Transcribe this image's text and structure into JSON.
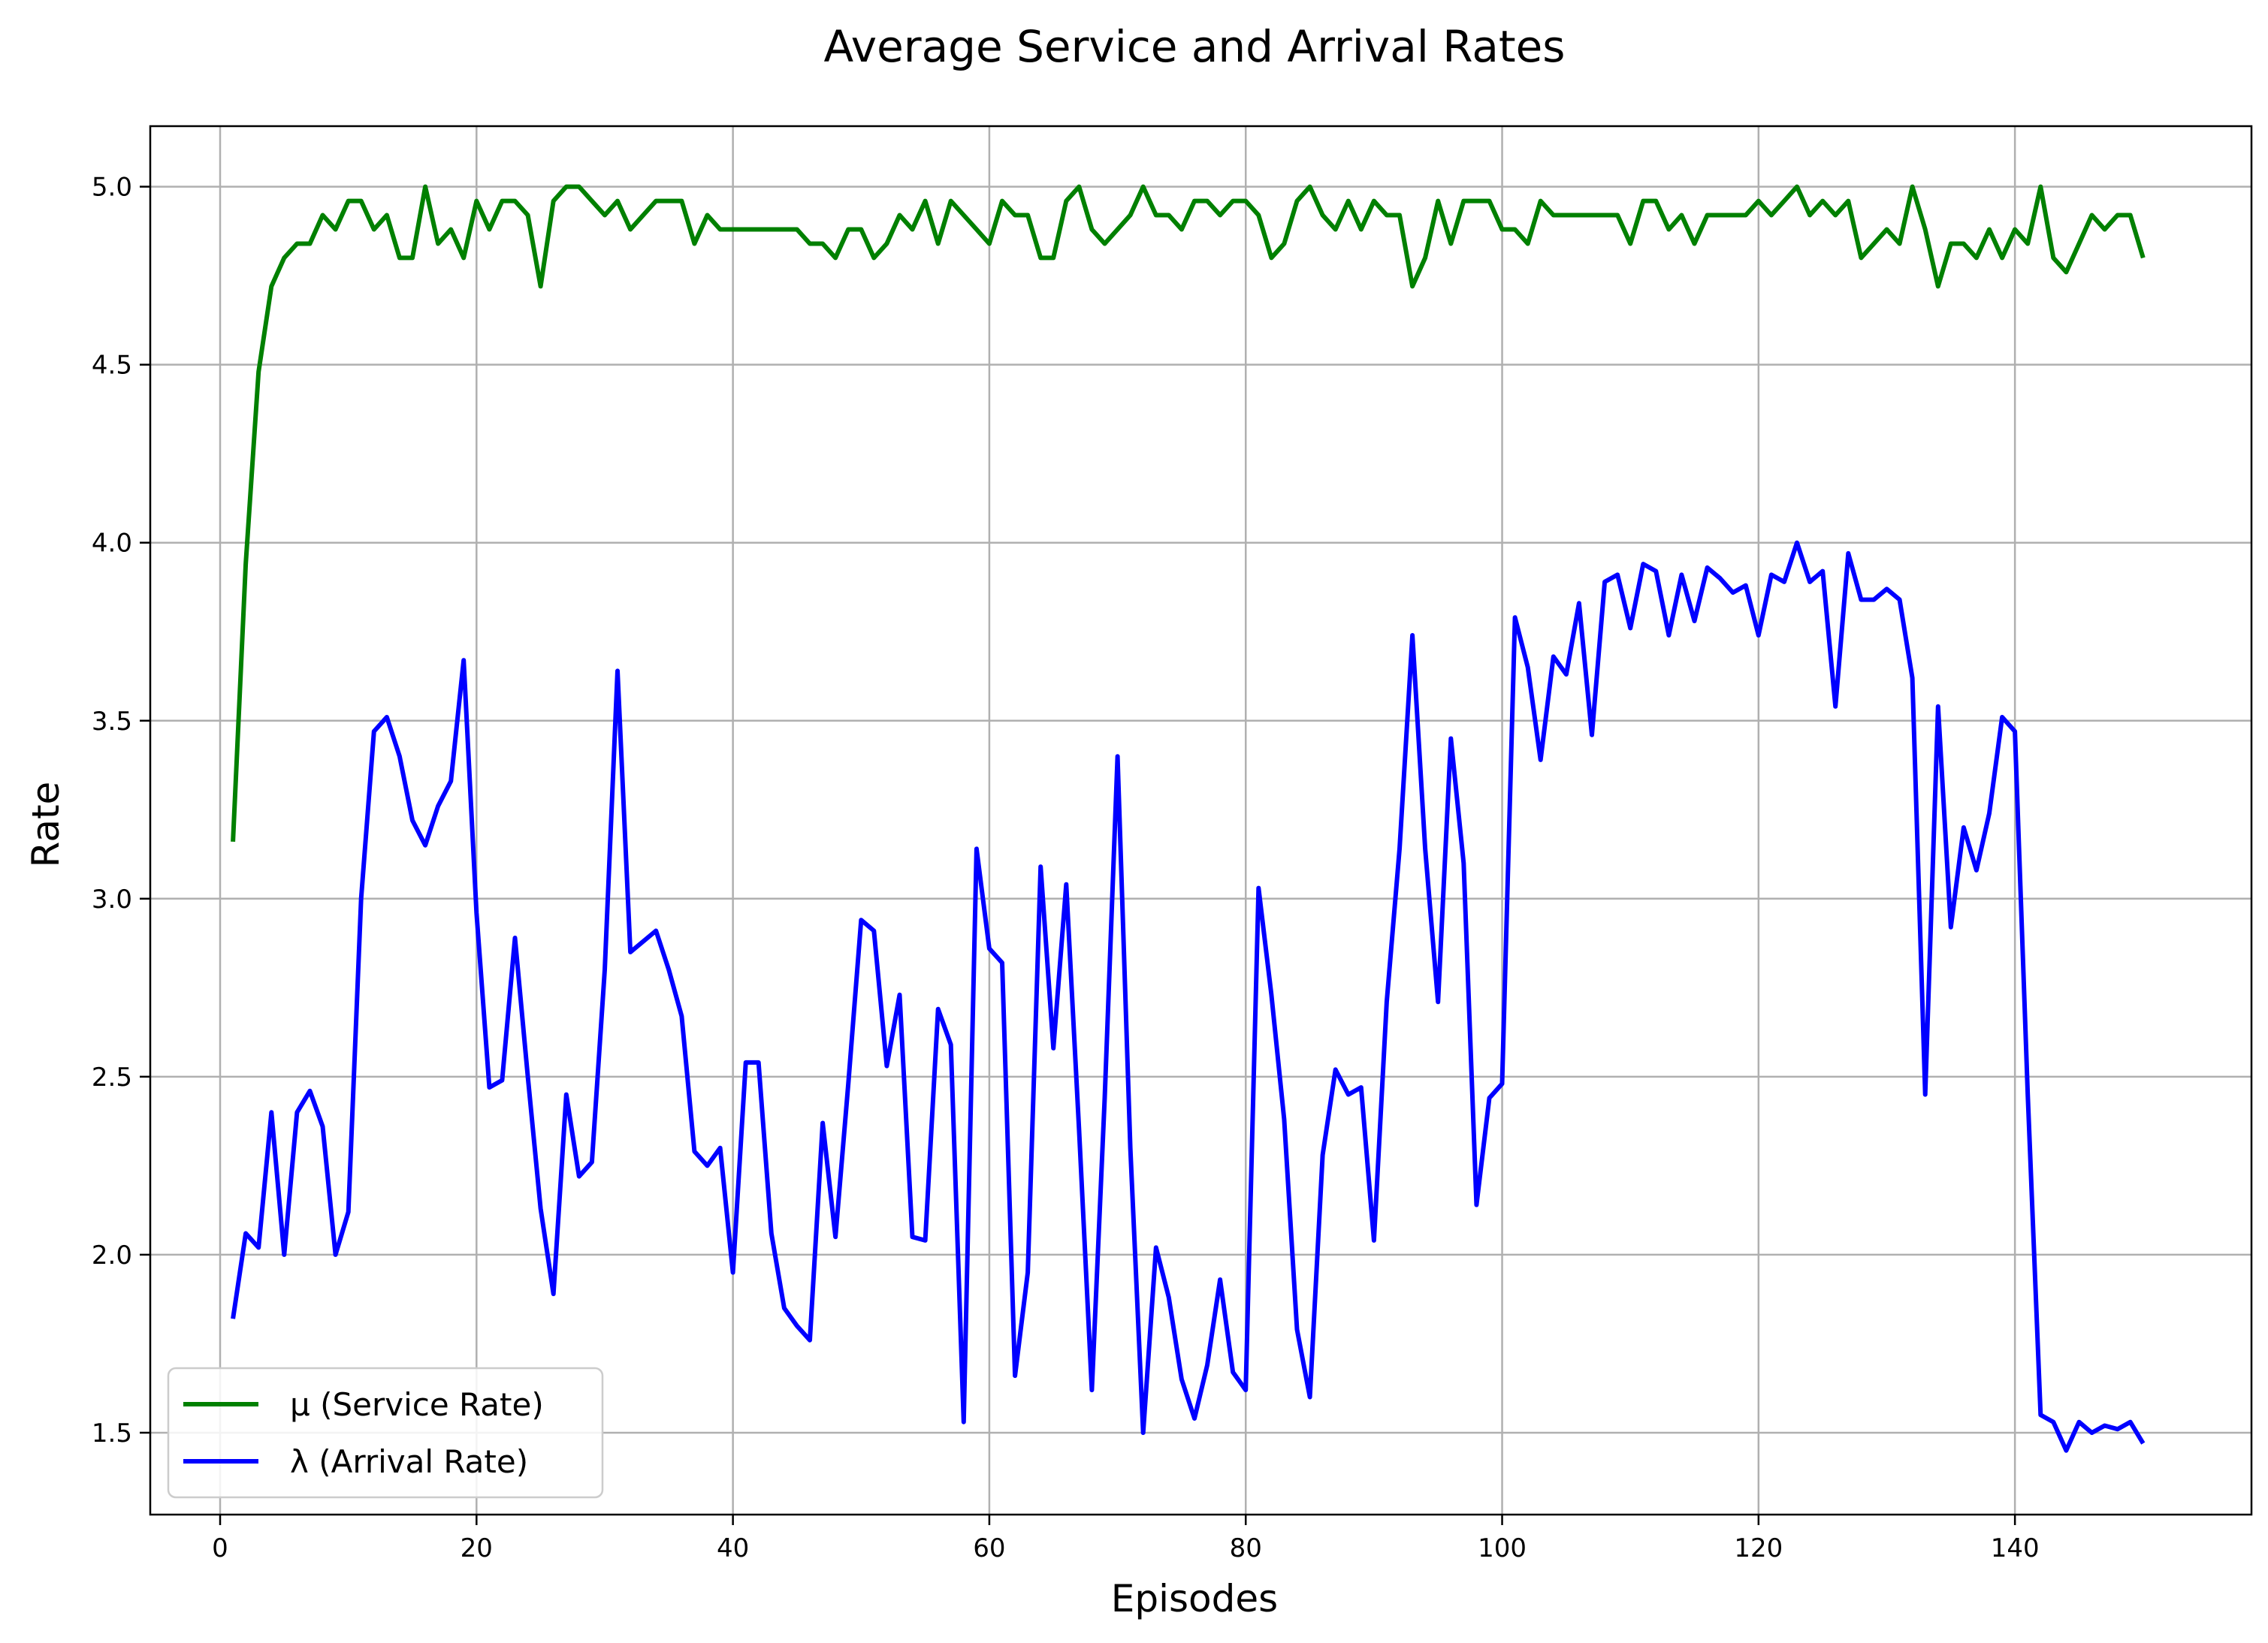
{
  "chart_data": {
    "type": "line",
    "title": "Average Service and Arrival Rates",
    "xlabel": "Episodes",
    "ylabel": "Rate",
    "xlim": [
      -5.45,
      158.45
    ],
    "ylim": [
      1.27,
      5.17
    ],
    "x_ticks": [
      0,
      20,
      40,
      60,
      80,
      100,
      120,
      140
    ],
    "y_ticks": [
      1.5,
      2.0,
      2.5,
      3.0,
      3.5,
      4.0,
      4.5,
      5.0
    ],
    "y_tick_labels": [
      "1.5",
      "2.0",
      "2.5",
      "3.0",
      "3.5",
      "4.0",
      "4.5",
      "5.0"
    ],
    "grid": true,
    "legend_position": "lower-left",
    "series": [
      {
        "name": "μ (Service Rate)",
        "color": "#008000",
        "x_start": 1,
        "values": [
          3.16,
          3.94,
          4.48,
          4.72,
          4.8,
          4.84,
          4.84,
          4.92,
          4.88,
          4.96,
          4.96,
          4.88,
          4.92,
          4.8,
          4.8,
          5.0,
          4.84,
          4.88,
          4.8,
          4.96,
          4.88,
          4.96,
          4.96,
          4.92,
          4.72,
          4.96,
          5.0,
          5.0,
          4.96,
          4.92,
          4.96,
          4.88,
          4.92,
          4.96,
          4.96,
          4.96,
          4.84,
          4.92,
          4.88,
          4.88,
          4.88,
          4.88,
          4.88,
          4.88,
          4.88,
          4.84,
          4.84,
          4.8,
          4.88,
          4.88,
          4.8,
          4.84,
          4.92,
          4.88,
          4.96,
          4.84,
          4.96,
          4.92,
          4.88,
          4.84,
          4.96,
          4.92,
          4.92,
          4.8,
          4.8,
          4.96,
          5.0,
          4.88,
          4.84,
          4.88,
          4.92,
          5.0,
          4.92,
          4.92,
          4.88,
          4.96,
          4.96,
          4.92,
          4.96,
          4.96,
          4.92,
          4.8,
          4.84,
          4.96,
          5.0,
          4.92,
          4.88,
          4.96,
          4.88,
          4.96,
          4.92,
          4.92,
          4.72,
          4.8,
          4.96,
          4.84,
          4.96,
          4.96,
          4.96,
          4.88,
          4.88,
          4.84,
          4.96,
          4.92,
          4.92,
          4.92,
          4.92,
          4.92,
          4.92,
          4.84,
          4.96,
          4.96,
          4.88,
          4.92,
          4.84,
          4.92,
          4.92,
          4.92,
          4.92,
          4.96,
          4.92,
          4.96,
          5.0,
          4.92,
          4.96,
          4.92,
          4.96,
          4.8,
          4.84,
          4.88,
          4.84,
          5.0,
          4.88,
          4.72,
          4.84,
          4.84,
          4.8,
          4.88,
          4.8,
          4.88,
          4.84,
          5.0,
          4.8,
          4.76,
          4.84,
          4.92,
          4.88,
          4.92,
          4.92,
          4.8
        ]
      },
      {
        "name": "λ (Arrival Rate)",
        "color": "#0000ff",
        "x_start": 1,
        "values": [
          1.82,
          2.06,
          2.02,
          2.4,
          2.0,
          2.4,
          2.46,
          2.36,
          2.0,
          2.12,
          3.0,
          3.47,
          3.51,
          3.4,
          3.22,
          3.15,
          3.26,
          3.33,
          3.67,
          2.96,
          2.47,
          2.49,
          2.89,
          2.5,
          2.13,
          1.89,
          2.45,
          2.22,
          2.26,
          2.8,
          3.64,
          2.85,
          2.88,
          2.91,
          2.8,
          2.67,
          2.29,
          2.25,
          2.3,
          1.95,
          2.54,
          2.54,
          2.06,
          1.85,
          1.8,
          1.76,
          2.37,
          2.05,
          2.48,
          2.94,
          2.91,
          2.53,
          2.73,
          2.05,
          2.04,
          2.69,
          2.59,
          1.53,
          3.14,
          2.86,
          2.82,
          1.66,
          1.95,
          3.09,
          2.58,
          3.04,
          2.35,
          1.62,
          2.44,
          3.4,
          2.3,
          1.5,
          2.02,
          1.88,
          1.65,
          1.54,
          1.69,
          1.93,
          1.67,
          1.62,
          3.03,
          2.73,
          2.38,
          1.79,
          1.6,
          2.28,
          2.52,
          2.45,
          2.47,
          2.04,
          2.71,
          3.14,
          3.74,
          3.14,
          2.71,
          3.45,
          3.1,
          2.14,
          2.44,
          2.48,
          3.79,
          3.65,
          3.39,
          3.68,
          3.63,
          3.83,
          3.46,
          3.89,
          3.91,
          3.76,
          3.94,
          3.92,
          3.74,
          3.91,
          3.78,
          3.93,
          3.9,
          3.86,
          3.88,
          3.74,
          3.91,
          3.89,
          4.0,
          3.89,
          3.92,
          3.54,
          3.97,
          3.84,
          3.84,
          3.87,
          3.84,
          3.62,
          2.45,
          3.54,
          2.92,
          3.2,
          3.08,
          3.24,
          3.51,
          3.47,
          2.45,
          1.55,
          1.53,
          1.45,
          1.53,
          1.5,
          1.52,
          1.51,
          1.53,
          1.47
        ]
      }
    ]
  }
}
